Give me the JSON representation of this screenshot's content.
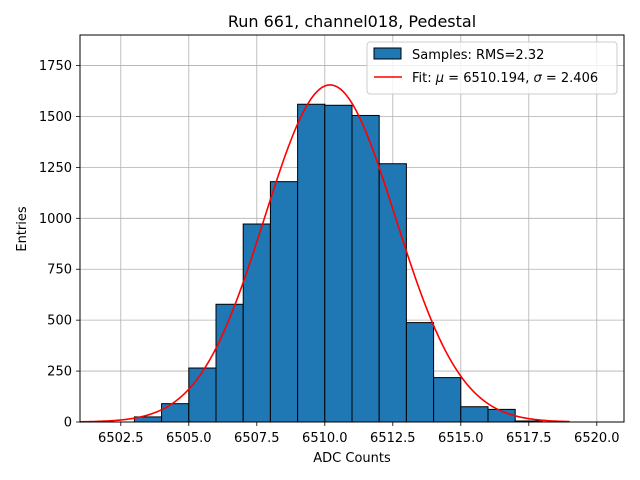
{
  "chart_data": {
    "type": "bar",
    "title": "Run 661, channel018, Pedestal",
    "xlabel": "ADC Counts",
    "ylabel": "Entries",
    "xlim": [
      6501.0,
      6521.0
    ],
    "ylim": [
      0,
      1900
    ],
    "grid": true,
    "bin_width": 1.0,
    "bins": [
      {
        "left": 6503,
        "count": 25
      },
      {
        "left": 6504,
        "count": 90
      },
      {
        "left": 6505,
        "count": 265
      },
      {
        "left": 6506,
        "count": 578
      },
      {
        "left": 6507,
        "count": 972
      },
      {
        "left": 6508,
        "count": 1180
      },
      {
        "left": 6509,
        "count": 1560
      },
      {
        "left": 6510,
        "count": 1555
      },
      {
        "left": 6511,
        "count": 1505
      },
      {
        "left": 6512,
        "count": 1268
      },
      {
        "left": 6513,
        "count": 488
      },
      {
        "left": 6514,
        "count": 218
      },
      {
        "left": 6515,
        "count": 75
      },
      {
        "left": 6516,
        "count": 62
      },
      {
        "left": 6517,
        "count": 5
      }
    ],
    "fit": {
      "amplitude": 1655,
      "mu": 6510.194,
      "sigma": 2.406,
      "x_range": [
        6501.0,
        6519.0
      ]
    },
    "x_ticks": [
      "6502.5",
      "6505.0",
      "6507.5",
      "6510.0",
      "6512.5",
      "6515.0",
      "6517.5",
      "6520.0"
    ],
    "x_tick_values": [
      6502.5,
      6505.0,
      6507.5,
      6510.0,
      6512.5,
      6515.0,
      6517.5,
      6520.0
    ],
    "y_ticks": [
      "0",
      "250",
      "500",
      "750",
      "1000",
      "1250",
      "1500",
      "1750"
    ],
    "y_tick_values": [
      0,
      250,
      500,
      750,
      1000,
      1250,
      1500,
      1750
    ],
    "legend": {
      "placement": "top-right",
      "samples_label": "Samples: RMS=2.32",
      "fit_label_prefix": "Fit: ",
      "fit_mu_symbol": "μ",
      "fit_mu_text": " = 6510.194, ",
      "fit_sigma_symbol": "σ",
      "fit_sigma_text": " = 2.406"
    },
    "colors": {
      "bar_fill": "#1f77b4",
      "bar_edge": "#000000",
      "fit_line": "#ff0000",
      "grid": "#b0b0b0"
    }
  }
}
